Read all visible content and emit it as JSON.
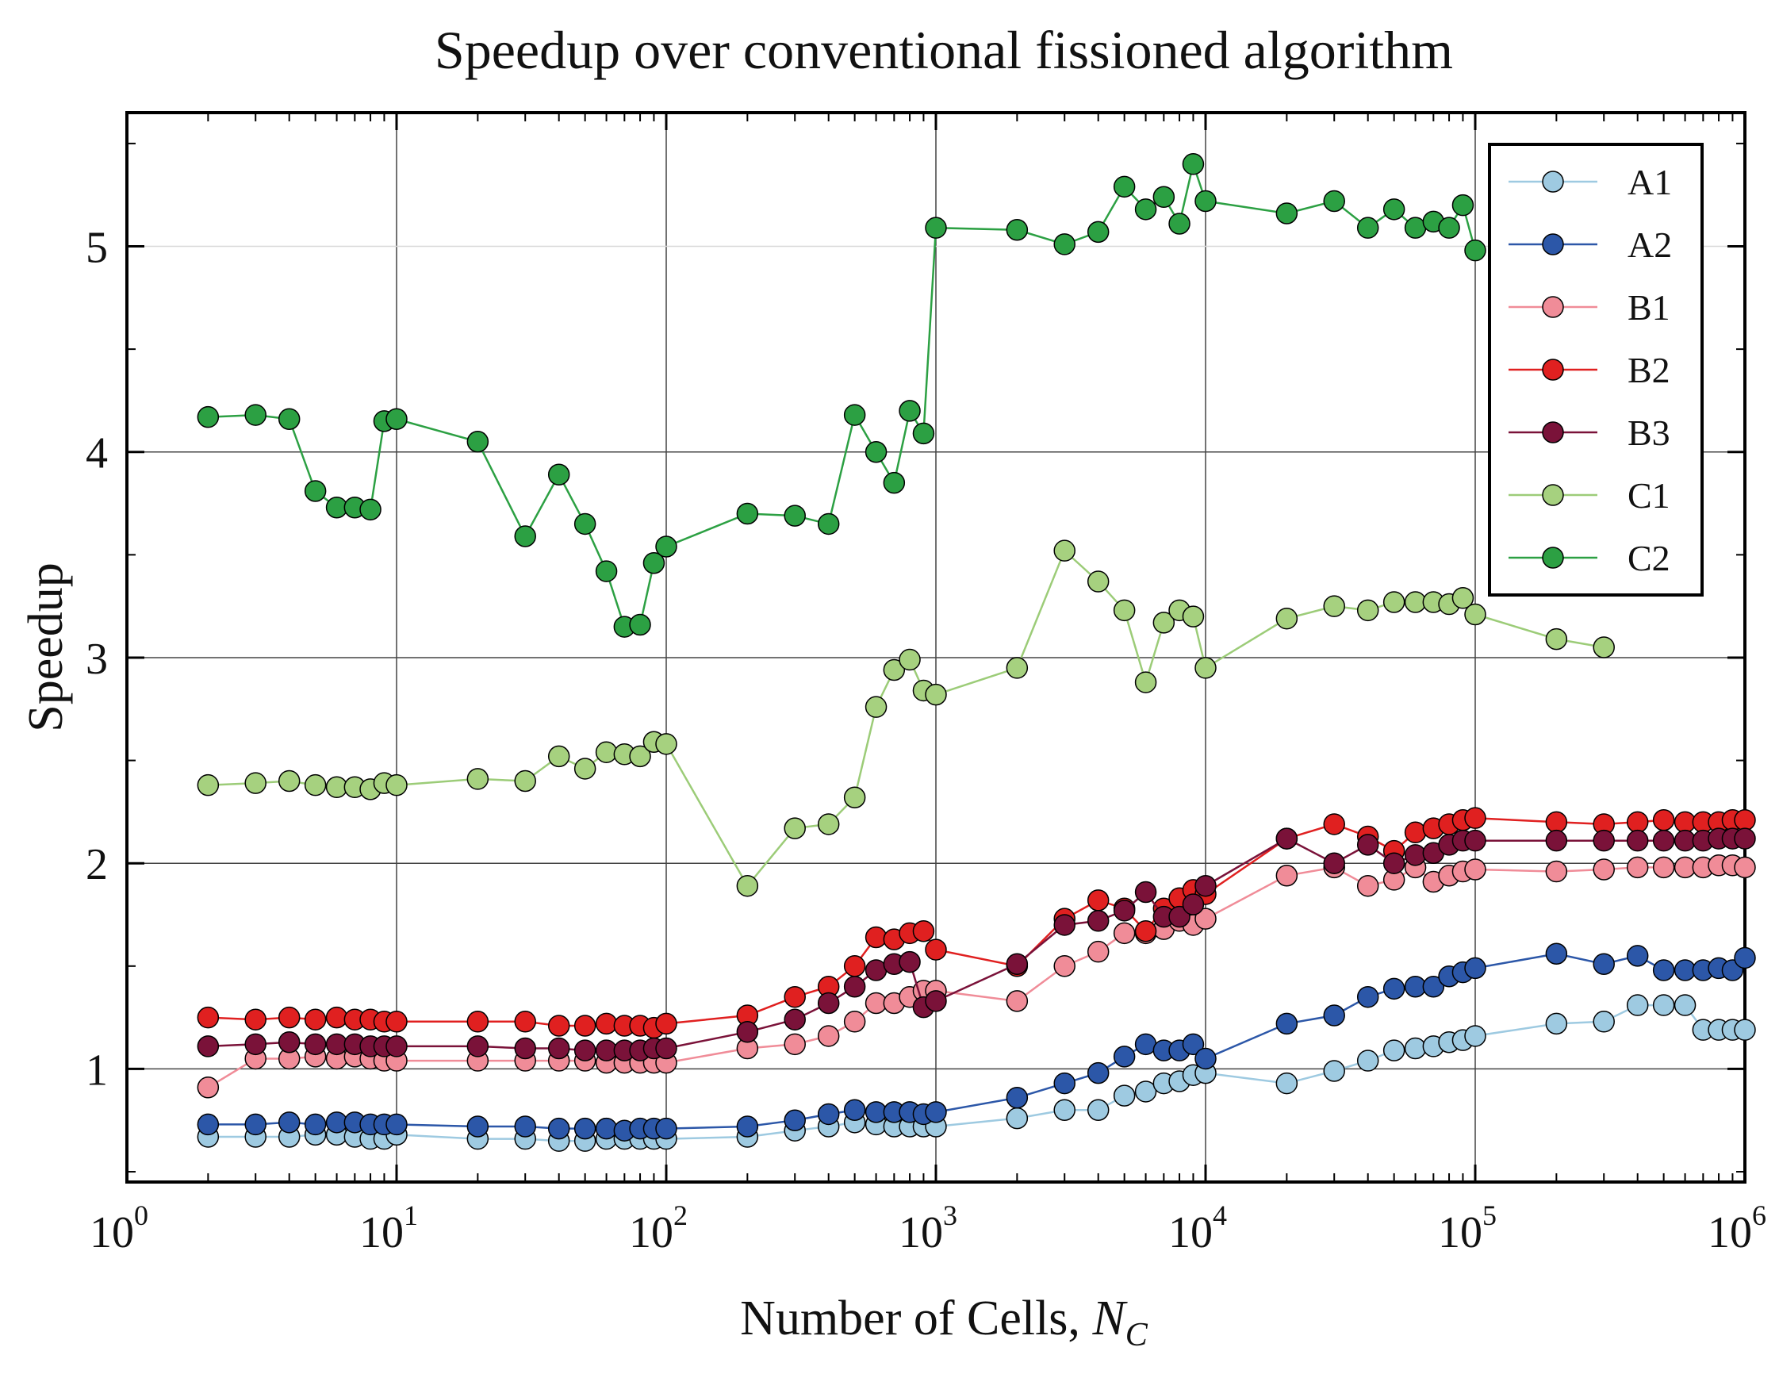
{
  "chart_data": {
    "type": "line",
    "title": "Speedup over conventional fissioned algorithm",
    "xlabel": "Number of Cells, ",
    "xlabel_symbol": "N",
    "xlabel_subscript": "C",
    "ylabel": "Speedup",
    "xscale": "log",
    "xlim": [
      1,
      1000000
    ],
    "ylim": [
      0.45,
      5.65
    ],
    "x_ticks": [
      {
        "value": 1,
        "base": "10",
        "exp": "0"
      },
      {
        "value": 10,
        "base": "10",
        "exp": "1"
      },
      {
        "value": 100,
        "base": "10",
        "exp": "2"
      },
      {
        "value": 1000,
        "base": "10",
        "exp": "3"
      },
      {
        "value": 10000,
        "base": "10",
        "exp": "4"
      },
      {
        "value": 100000,
        "base": "10",
        "exp": "5"
      },
      {
        "value": 1000000,
        "base": "10",
        "exp": "6"
      }
    ],
    "y_ticks": [
      {
        "value": 1,
        "label": "1"
      },
      {
        "value": 2,
        "label": "2"
      },
      {
        "value": 3,
        "label": "3"
      },
      {
        "value": 4,
        "label": "4"
      },
      {
        "value": 5,
        "label": "5"
      }
    ],
    "grid": true,
    "legend_position": "top-right",
    "series": [
      {
        "name": "A1",
        "color": "#9ecae1",
        "line_color": "#9ecae1",
        "x": [
          2,
          3,
          4,
          5,
          6,
          7,
          8,
          9,
          10,
          20,
          30,
          40,
          50,
          60,
          70,
          80,
          90,
          100,
          200,
          300,
          400,
          500,
          600,
          700,
          800,
          900,
          1000,
          2000,
          3000,
          4000,
          5000,
          6000,
          7000,
          8000,
          9000,
          10000,
          20000,
          30000,
          40000,
          50000,
          60000,
          70000,
          80000,
          90000,
          100000,
          200000,
          300000,
          400000,
          500000,
          600000,
          700000,
          800000,
          900000,
          1000000
        ],
        "y": [
          0.67,
          0.67,
          0.67,
          0.68,
          0.68,
          0.67,
          0.66,
          0.66,
          0.68,
          0.66,
          0.66,
          0.65,
          0.65,
          0.66,
          0.66,
          0.66,
          0.66,
          0.66,
          0.67,
          0.7,
          0.72,
          0.74,
          0.73,
          0.72,
          0.72,
          0.72,
          0.72,
          0.76,
          0.8,
          0.8,
          0.87,
          0.89,
          0.93,
          0.94,
          0.97,
          0.98,
          0.93,
          0.99,
          1.04,
          1.09,
          1.1,
          1.11,
          1.13,
          1.14,
          1.16,
          1.22,
          1.23,
          1.31,
          1.31,
          1.31,
          1.19,
          1.19,
          1.19,
          1.19
        ]
      },
      {
        "name": "A2",
        "color": "#2c57a8",
        "line_color": "#2c57a8",
        "x": [
          2,
          3,
          4,
          5,
          6,
          7,
          8,
          9,
          10,
          20,
          30,
          40,
          50,
          60,
          70,
          80,
          90,
          100,
          200,
          300,
          400,
          500,
          600,
          700,
          800,
          900,
          1000,
          2000,
          3000,
          4000,
          5000,
          6000,
          7000,
          8000,
          9000,
          10000,
          20000,
          30000,
          40000,
          50000,
          60000,
          70000,
          80000,
          90000,
          100000,
          200000,
          300000,
          400000,
          500000,
          600000,
          700000,
          800000,
          900000,
          1000000
        ],
        "y": [
          0.73,
          0.73,
          0.74,
          0.73,
          0.74,
          0.74,
          0.73,
          0.73,
          0.73,
          0.72,
          0.72,
          0.71,
          0.71,
          0.71,
          0.7,
          0.71,
          0.71,
          0.71,
          0.72,
          0.75,
          0.78,
          0.8,
          0.79,
          0.79,
          0.79,
          0.78,
          0.79,
          0.86,
          0.93,
          0.98,
          1.06,
          1.12,
          1.09,
          1.09,
          1.12,
          1.05,
          1.22,
          1.26,
          1.35,
          1.39,
          1.4,
          1.4,
          1.45,
          1.47,
          1.49,
          1.56,
          1.51,
          1.55,
          1.48,
          1.48,
          1.48,
          1.49,
          1.48,
          1.54
        ]
      },
      {
        "name": "B1",
        "color": "#f08c98",
        "line_color": "#f08c98",
        "x": [
          2,
          3,
          4,
          5,
          6,
          7,
          8,
          9,
          10,
          20,
          30,
          40,
          50,
          60,
          70,
          80,
          90,
          100,
          200,
          300,
          400,
          500,
          600,
          700,
          800,
          900,
          1000,
          2000,
          3000,
          4000,
          5000,
          6000,
          7000,
          8000,
          9000,
          10000,
          20000,
          30000,
          40000,
          50000,
          60000,
          70000,
          80000,
          90000,
          100000,
          200000,
          300000,
          400000,
          500000,
          600000,
          700000,
          800000,
          900000,
          1000000
        ],
        "y": [
          0.91,
          1.05,
          1.05,
          1.06,
          1.05,
          1.06,
          1.05,
          1.04,
          1.04,
          1.04,
          1.04,
          1.04,
          1.04,
          1.03,
          1.03,
          1.03,
          1.03,
          1.03,
          1.1,
          1.12,
          1.16,
          1.23,
          1.32,
          1.32,
          1.35,
          1.38,
          1.38,
          1.33,
          1.5,
          1.57,
          1.66,
          1.66,
          1.68,
          1.72,
          1.7,
          1.73,
          1.94,
          1.98,
          1.89,
          1.92,
          1.98,
          1.91,
          1.94,
          1.96,
          1.97,
          1.96,
          1.97,
          1.98,
          1.98,
          1.98,
          1.98,
          1.99,
          1.99,
          1.98
        ]
      },
      {
        "name": "B2",
        "color": "#e02020",
        "line_color": "#e02020",
        "x": [
          2,
          3,
          4,
          5,
          6,
          7,
          8,
          9,
          10,
          20,
          30,
          40,
          50,
          60,
          70,
          80,
          90,
          100,
          200,
          300,
          400,
          500,
          600,
          700,
          800,
          900,
          1000,
          2000,
          3000,
          4000,
          5000,
          6000,
          7000,
          8000,
          9000,
          10000,
          20000,
          30000,
          40000,
          50000,
          60000,
          70000,
          80000,
          90000,
          100000,
          200000,
          300000,
          400000,
          500000,
          600000,
          700000,
          800000,
          900000,
          1000000
        ],
        "y": [
          1.25,
          1.24,
          1.25,
          1.24,
          1.25,
          1.24,
          1.24,
          1.23,
          1.23,
          1.23,
          1.23,
          1.21,
          1.21,
          1.22,
          1.21,
          1.21,
          1.2,
          1.22,
          1.26,
          1.35,
          1.4,
          1.5,
          1.64,
          1.63,
          1.66,
          1.67,
          1.58,
          1.5,
          1.73,
          1.82,
          1.78,
          1.67,
          1.78,
          1.83,
          1.87,
          1.85,
          2.12,
          2.19,
          2.13,
          2.06,
          2.15,
          2.17,
          2.19,
          2.21,
          2.22,
          2.2,
          2.19,
          2.2,
          2.21,
          2.2,
          2.2,
          2.2,
          2.21,
          2.21
        ]
      },
      {
        "name": "B3",
        "color": "#7a1239",
        "line_color": "#7a1239",
        "x": [
          2,
          3,
          4,
          5,
          6,
          7,
          8,
          9,
          10,
          20,
          30,
          40,
          50,
          60,
          70,
          80,
          90,
          100,
          200,
          300,
          400,
          500,
          600,
          700,
          800,
          900,
          1000,
          2000,
          3000,
          4000,
          5000,
          6000,
          7000,
          8000,
          9000,
          10000,
          20000,
          30000,
          40000,
          50000,
          60000,
          70000,
          80000,
          90000,
          100000,
          200000,
          300000,
          400000,
          500000,
          600000,
          700000,
          800000,
          900000,
          1000000
        ],
        "y": [
          1.11,
          1.12,
          1.13,
          1.12,
          1.12,
          1.12,
          1.11,
          1.11,
          1.11,
          1.11,
          1.1,
          1.1,
          1.09,
          1.09,
          1.09,
          1.09,
          1.1,
          1.1,
          1.18,
          1.24,
          1.32,
          1.4,
          1.48,
          1.51,
          1.52,
          1.3,
          1.33,
          1.51,
          1.7,
          1.72,
          1.77,
          1.86,
          1.74,
          1.74,
          1.8,
          1.89,
          2.12,
          2.0,
          2.09,
          2.0,
          2.04,
          2.05,
          2.09,
          2.11,
          2.11,
          2.11,
          2.11,
          2.11,
          2.11,
          2.11,
          2.11,
          2.12,
          2.12,
          2.12
        ]
      },
      {
        "name": "C1",
        "color": "#a6d17f",
        "line_color": "#9ccc78",
        "x": [
          2,
          3,
          4,
          5,
          6,
          7,
          8,
          9,
          10,
          20,
          30,
          40,
          50,
          60,
          70,
          80,
          90,
          100,
          200,
          300,
          400,
          500,
          600,
          700,
          800,
          900,
          1000,
          2000,
          3000,
          4000,
          5000,
          6000,
          7000,
          8000,
          9000,
          10000,
          20000,
          30000,
          40000,
          50000,
          60000,
          70000,
          80000,
          90000,
          100000,
          200000,
          300000
        ],
        "y": [
          2.38,
          2.39,
          2.4,
          2.38,
          2.37,
          2.37,
          2.36,
          2.39,
          2.38,
          2.41,
          2.4,
          2.52,
          2.46,
          2.54,
          2.53,
          2.52,
          2.59,
          2.58,
          1.89,
          2.17,
          2.19,
          2.32,
          2.76,
          2.94,
          2.99,
          2.84,
          2.82,
          2.95,
          3.52,
          3.37,
          3.23,
          2.88,
          3.17,
          3.23,
          3.2,
          2.95,
          3.19,
          3.25,
          3.23,
          3.27,
          3.27,
          3.27,
          3.26,
          3.29,
          3.21,
          3.09,
          3.05
        ]
      },
      {
        "name": "C2",
        "color": "#2ca043",
        "line_color": "#2ca043",
        "x": [
          2,
          3,
          4,
          5,
          6,
          7,
          8,
          9,
          10,
          20,
          30,
          40,
          50,
          60,
          70,
          80,
          90,
          100,
          200,
          300,
          400,
          500,
          600,
          700,
          800,
          900,
          1000,
          2000,
          3000,
          4000,
          5000,
          6000,
          7000,
          8000,
          9000,
          10000,
          20000,
          30000,
          40000,
          50000,
          60000,
          70000,
          80000,
          90000,
          100000
        ],
        "y": [
          4.17,
          4.18,
          4.16,
          3.81,
          3.73,
          3.73,
          3.72,
          4.15,
          4.16,
          4.05,
          3.59,
          3.89,
          3.65,
          3.42,
          3.15,
          3.16,
          3.46,
          3.54,
          3.7,
          3.69,
          3.65,
          4.18,
          4.0,
          3.85,
          4.2,
          4.09,
          5.09,
          5.08,
          5.01,
          5.07,
          5.29,
          5.18,
          5.24,
          5.11,
          5.4,
          5.22,
          5.16,
          5.22,
          5.09,
          5.18,
          5.09,
          5.12,
          5.09,
          5.2,
          4.98
        ]
      }
    ]
  }
}
